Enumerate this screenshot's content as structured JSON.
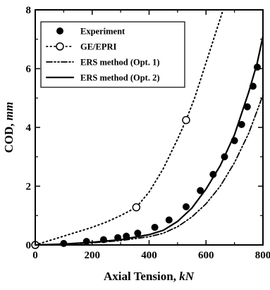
{
  "chart_data": {
    "type": "line",
    "xlabel_main": "Axial Tension, ",
    "xlabel_unit": "kN",
    "ylabel_main": "COD, ",
    "ylabel_unit": "mm",
    "xlim": [
      0,
      800
    ],
    "ylim": [
      0,
      8
    ],
    "x_ticks": [
      0,
      200,
      400,
      600,
      800
    ],
    "y_ticks": [
      0,
      2,
      4,
      6,
      8
    ],
    "grid": false,
    "legend_position": "top-left",
    "series": [
      {
        "name": "Experiment",
        "style": "filled-circle",
        "points": [
          [
            0,
            0
          ],
          [
            100,
            0.05
          ],
          [
            180,
            0.12
          ],
          [
            240,
            0.18
          ],
          [
            290,
            0.25
          ],
          [
            320,
            0.3
          ],
          [
            360,
            0.4
          ],
          [
            420,
            0.6
          ],
          [
            470,
            0.85
          ],
          [
            530,
            1.3
          ],
          [
            580,
            1.85
          ],
          [
            625,
            2.4
          ],
          [
            665,
            3.0
          ],
          [
            700,
            3.55
          ],
          [
            725,
            4.1
          ],
          [
            745,
            4.7
          ],
          [
            765,
            5.4
          ],
          [
            780,
            6.05
          ]
        ]
      },
      {
        "name": "GE/EPRI",
        "style": "dotted",
        "points": [
          [
            0,
            0
          ],
          [
            50,
            0.15
          ],
          [
            100,
            0.3
          ],
          [
            150,
            0.45
          ],
          [
            200,
            0.6
          ],
          [
            250,
            0.78
          ],
          [
            300,
            1.0
          ],
          [
            355,
            1.28
          ],
          [
            400,
            1.8
          ],
          [
            450,
            2.6
          ],
          [
            500,
            3.6
          ],
          [
            530,
            4.25
          ],
          [
            560,
            5.0
          ],
          [
            600,
            6.2
          ],
          [
            640,
            7.4
          ],
          [
            660,
            8.0
          ]
        ],
        "markers": [
          [
            0,
            0
          ],
          [
            355,
            1.28
          ],
          [
            530,
            4.25
          ]
        ]
      },
      {
        "name": "ERS method (Opt. 1)",
        "style": "dash-dot-dot",
        "points": [
          [
            0,
            0
          ],
          [
            100,
            0.02
          ],
          [
            200,
            0.07
          ],
          [
            300,
            0.15
          ],
          [
            400,
            0.28
          ],
          [
            450,
            0.4
          ],
          [
            500,
            0.62
          ],
          [
            550,
            0.95
          ],
          [
            600,
            1.4
          ],
          [
            650,
            2.0
          ],
          [
            700,
            2.8
          ],
          [
            750,
            3.8
          ],
          [
            800,
            5.1
          ]
        ]
      },
      {
        "name": "ERS method (Opt. 2)",
        "style": "solid",
        "points": [
          [
            0,
            0
          ],
          [
            100,
            0.03
          ],
          [
            200,
            0.09
          ],
          [
            300,
            0.18
          ],
          [
            400,
            0.35
          ],
          [
            450,
            0.5
          ],
          [
            500,
            0.8
          ],
          [
            550,
            1.25
          ],
          [
            600,
            1.9
          ],
          [
            650,
            2.7
          ],
          [
            700,
            3.75
          ],
          [
            750,
            5.2
          ],
          [
            780,
            6.2
          ],
          [
            800,
            7.1
          ]
        ]
      }
    ]
  }
}
